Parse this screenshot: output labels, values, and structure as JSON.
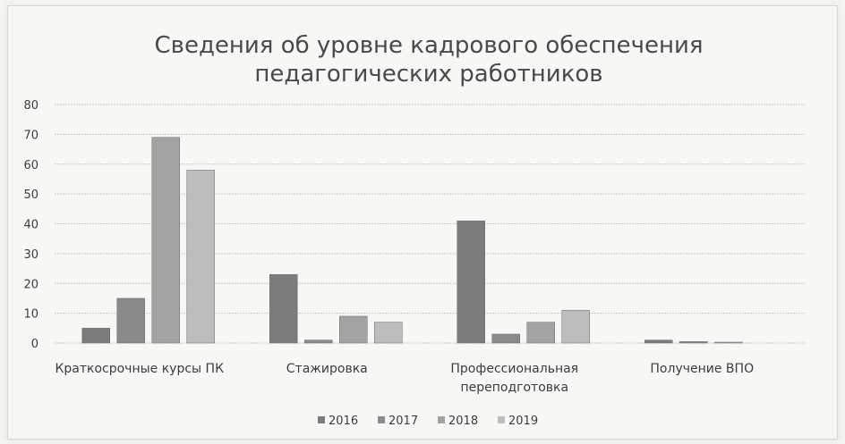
{
  "chart_data": {
    "type": "bar",
    "title": [
      "Сведения об уровне кадрового обеспечения",
      "педагогических работников"
    ],
    "categories": [
      [
        "Краткосрочные курсы ПК"
      ],
      [
        "Стажировка"
      ],
      [
        "Профессиональная",
        "переподготовка"
      ],
      [
        "Получение ВПО"
      ]
    ],
    "series": [
      {
        "name": "2016",
        "values": [
          5,
          23,
          41,
          1
        ],
        "color": "#7c7c7c"
      },
      {
        "name": "2017",
        "values": [
          15,
          1,
          3,
          0.5
        ],
        "color": "#8a8a8a"
      },
      {
        "name": "2018",
        "values": [
          69,
          9,
          7,
          0.3
        ],
        "color": "#a3a3a3"
      },
      {
        "name": "2019",
        "values": [
          58,
          7,
          11,
          0
        ],
        "color": "#bdbdbd"
      }
    ],
    "yticks": [
      "0",
      "10",
      "20",
      "30",
      "40",
      "50",
      "60",
      "70",
      "80"
    ],
    "ylim": [
      0,
      80
    ],
    "grid": true,
    "legend_position": "bottom"
  }
}
